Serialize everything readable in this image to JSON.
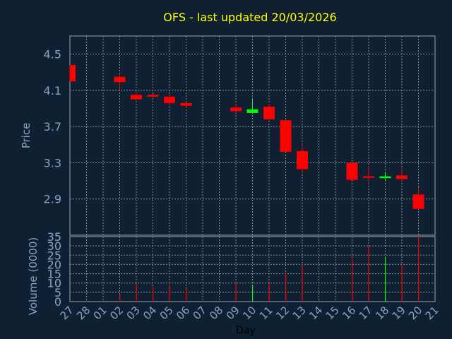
{
  "chart_data": {
    "type": "candlestick",
    "title": "OFS - last updated 20/03/2026",
    "xlabel": "Day",
    "colors": {
      "background": "#0f2033",
      "plot_border": "#9aa6b2",
      "grid": "#7f8c99",
      "axis_text": "#8aa2bd",
      "title": "#ffff00",
      "xlabel": "#000000",
      "up": "#00ff00",
      "down": "#ff0000"
    },
    "x_labels": [
      "27",
      "28",
      "01",
      "02",
      "03",
      "04",
      "05",
      "06",
      "07",
      "08",
      "09",
      "10",
      "11",
      "12",
      "13",
      "14",
      "15",
      "16",
      "17",
      "18",
      "19",
      "20",
      "21"
    ],
    "price_panel": {
      "ylabel": "Price",
      "ylim": [
        2.5,
        4.7
      ],
      "yticks": [
        "4.5",
        "4.1",
        "3.7",
        "3.3",
        "2.9"
      ],
      "ytick_values": [
        4.5,
        4.1,
        3.7,
        3.3,
        2.9
      ],
      "candles": [
        {
          "x": 0,
          "open": 4.38,
          "close": 4.2,
          "high": 4.38,
          "low": 4.2
        },
        {
          "x": 3,
          "open": 4.25,
          "close": 4.19,
          "high": 4.27,
          "low": 4.09
        },
        {
          "x": 4,
          "open": 4.05,
          "close": 4.0,
          "high": 4.09,
          "low": 3.99
        },
        {
          "x": 5,
          "open": 4.05,
          "close": 4.03,
          "high": 4.06,
          "low": 4.02
        },
        {
          "x": 6,
          "open": 4.03,
          "close": 3.96,
          "high": 4.04,
          "low": 3.93
        },
        {
          "x": 7,
          "open": 3.96,
          "close": 3.93,
          "high": 3.97,
          "low": 3.91
        },
        {
          "x": 10,
          "open": 3.91,
          "close": 3.87,
          "high": 3.96,
          "low": 3.85
        },
        {
          "x": 11,
          "open": 3.85,
          "close": 3.89,
          "high": 4.0,
          "low": 3.85
        },
        {
          "x": 12,
          "open": 3.92,
          "close": 3.78,
          "high": 3.95,
          "low": 3.77
        },
        {
          "x": 13,
          "open": 3.77,
          "close": 3.42,
          "high": 3.77,
          "low": 3.42
        },
        {
          "x": 14,
          "open": 3.43,
          "close": 3.23,
          "high": 3.51,
          "low": 3.18
        },
        {
          "x": 17,
          "open": 3.3,
          "close": 3.11,
          "high": 3.3,
          "low": 3.11
        },
        {
          "x": 18,
          "open": 3.15,
          "close": 3.14,
          "high": 3.27,
          "low": 3.07
        },
        {
          "x": 19,
          "open": 3.13,
          "close": 3.15,
          "high": 3.2,
          "low": 3.1
        },
        {
          "x": 20,
          "open": 3.16,
          "close": 3.12,
          "high": 3.24,
          "low": 3.1
        },
        {
          "x": 21,
          "open": 2.95,
          "close": 2.79,
          "high": 3.03,
          "low": 2.79
        }
      ]
    },
    "volume_panel": {
      "ylabel": "Volume (0000)",
      "ylim": [
        0,
        35
      ],
      "yticks": [
        "35",
        "30",
        "25",
        "20",
        "15",
        "10",
        "5",
        "0"
      ],
      "ytick_values": [
        35,
        30,
        25,
        20,
        15,
        10,
        5,
        0
      ],
      "bars": [
        {
          "x": 3,
          "value": 4,
          "dir": "down"
        },
        {
          "x": 4,
          "value": 10,
          "dir": "down"
        },
        {
          "x": 5,
          "value": 8,
          "dir": "down"
        },
        {
          "x": 6,
          "value": 9,
          "dir": "down"
        },
        {
          "x": 7,
          "value": 7,
          "dir": "down"
        },
        {
          "x": 10,
          "value": 10,
          "dir": "down"
        },
        {
          "x": 11,
          "value": 9,
          "dir": "up"
        },
        {
          "x": 12,
          "value": 10,
          "dir": "down"
        },
        {
          "x": 13,
          "value": 15,
          "dir": "down"
        },
        {
          "x": 14,
          "value": 20,
          "dir": "down"
        },
        {
          "x": 17,
          "value": 23,
          "dir": "down"
        },
        {
          "x": 18,
          "value": 30,
          "dir": "down"
        },
        {
          "x": 19,
          "value": 24,
          "dir": "up"
        },
        {
          "x": 20,
          "value": 20,
          "dir": "down"
        },
        {
          "x": 21,
          "value": 35,
          "dir": "down"
        }
      ]
    }
  }
}
